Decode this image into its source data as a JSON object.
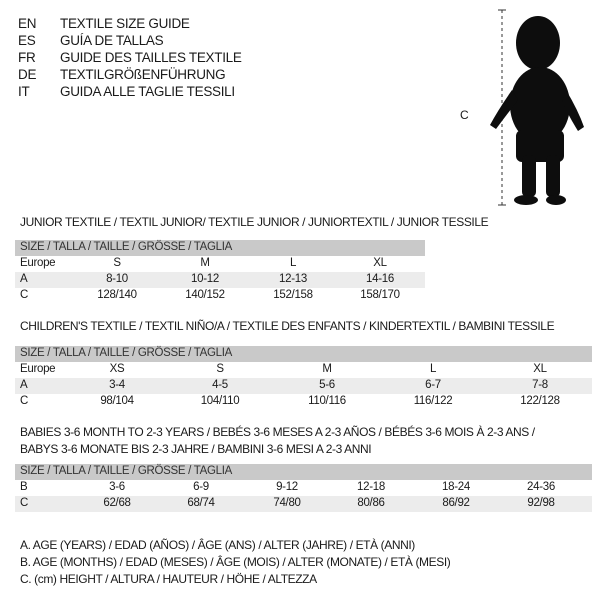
{
  "header": {
    "languages": [
      {
        "code": "EN",
        "title": "TEXTILE SIZE GUIDE"
      },
      {
        "code": "ES",
        "title": "GUÍA DE TALLAS"
      },
      {
        "code": "FR",
        "title": "GUIDE DES TAILLES TEXTILE"
      },
      {
        "code": "DE",
        "title": "TEXTILGRÖßENFÜHRUNG"
      },
      {
        "code": "IT",
        "title": "GUIDA ALLE TAGLIE TESSILI"
      }
    ]
  },
  "figure": {
    "height_label": "C"
  },
  "junior": {
    "title": "JUNIOR TEXTILE / TEXTIL JUNIOR/ TEXTILE JUNIOR / JUNIORTEXTIL / JUNIOR TESSILE",
    "header": "SIZE / TALLA / TAILLE / GRÖSSE / TAGLIA",
    "rows": [
      {
        "label": "Europe",
        "values": [
          "S",
          "M",
          "L",
          "XL"
        ]
      },
      {
        "label": "A",
        "values": [
          "8-10",
          "10-12",
          "12-13",
          "14-16"
        ]
      },
      {
        "label": "C",
        "values": [
          "128/140",
          "140/152",
          "152/158",
          "158/170"
        ]
      }
    ]
  },
  "children": {
    "title": "CHILDREN'S TEXTILE / TEXTIL NIÑO/A / TEXTILE DES ENFANTS / KINDERTEXTIL / BAMBINI TESSILE",
    "header": "SIZE / TALLA / TAILLE / GRÖSSE / TAGLIA",
    "rows": [
      {
        "label": "Europe",
        "values": [
          "XS",
          "S",
          "M",
          "L",
          "XL"
        ]
      },
      {
        "label": "A",
        "values": [
          "3-4",
          "4-5",
          "5-6",
          "6-7",
          "7-8"
        ]
      },
      {
        "label": "C",
        "values": [
          "98/104",
          "104/110",
          "110/116",
          "116/122",
          "122/128"
        ]
      }
    ]
  },
  "babies": {
    "title_line1": "BABIES 3-6 MONTH TO 2-3 YEARS / BEBÉS 3-6 MESES A 2-3 AÑOS / BÉBÉS 3-6 MOIS À 2-3 ANS /",
    "title_line2": "BABYS 3-6 MONATE BIS 2-3 JAHRE / BAMBINI 3-6 MESI A 2-3 ANNI",
    "header": "SIZE / TALLA / TAILLE / GRÖSSE / TAGLIA",
    "rows": [
      {
        "label": "B",
        "values": [
          "3-6",
          "6-9",
          "9-12",
          "12-18",
          "18-24",
          "24-36"
        ]
      },
      {
        "label": "C",
        "values": [
          "62/68",
          "68/74",
          "74/80",
          "80/86",
          "86/92",
          "92/98"
        ]
      }
    ]
  },
  "legend": [
    "A. AGE (YEARS) / EDAD (AÑOS) / ÂGE (ANS) / ALTER (JAHRE) / ETÀ (ANNI)",
    "B. AGE (MONTHS) / EDAD (MESES) / ÂGE (MOIS) / ALTER (MONATE) / ETÀ (MESI)",
    "C. (cm) HEIGHT / ALTURA / HAUTEUR / HÖHE / ALTEZZA"
  ]
}
